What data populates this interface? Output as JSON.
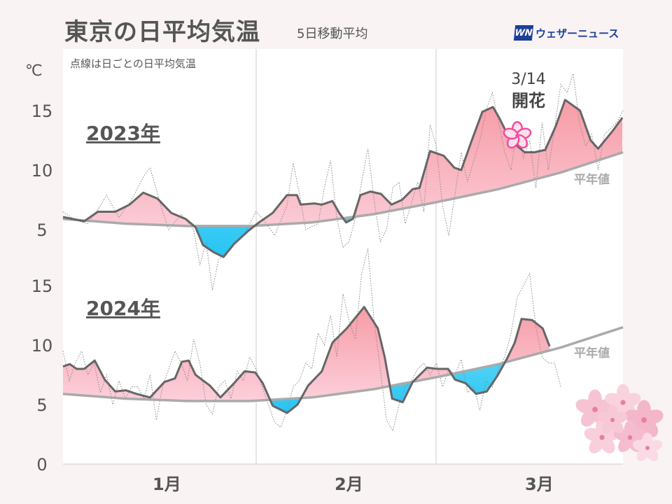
{
  "header": {
    "title": "東京の日平均気温",
    "subtitle": "5日移動平均",
    "logo_text": "ウェザーニュース",
    "logo_mark": "WN"
  },
  "note": "点線は日ごとの日平均気温",
  "colors": {
    "above": "#f7a8b4",
    "below": "#3fd0f5",
    "avg_line": "#666666",
    "normal_line": "#aaaaaa"
  },
  "chart_data": [
    {
      "type": "area",
      "title": "2023年",
      "ylabel": "℃",
      "yticks": [
        5,
        10,
        15
      ],
      "ylim": [
        0,
        17
      ],
      "xlabels": [
        "1月",
        "2月",
        "3月"
      ],
      "xlim_days": [
        0,
        90
      ],
      "annotation": {
        "date": "3/14",
        "label": "開花",
        "day": 72.5
      },
      "normal_label": "平年値",
      "normal": [
        [
          0,
          5.9
        ],
        [
          10,
          5.5
        ],
        [
          20,
          5.3
        ],
        [
          30,
          5.3
        ],
        [
          40,
          5.6
        ],
        [
          50,
          6.3
        ],
        [
          60,
          7.3
        ],
        [
          70,
          8.4
        ],
        [
          80,
          9.8
        ],
        [
          90,
          11.5
        ]
      ],
      "avg": [
        [
          0,
          6.06
        ],
        [
          3.4,
          5.7
        ],
        [
          5.6,
          6.5
        ],
        [
          8.4,
          6.5
        ],
        [
          10.7,
          7.1
        ],
        [
          12.9,
          8.1
        ],
        [
          15.2,
          7.6
        ],
        [
          17.4,
          6.4
        ],
        [
          19.7,
          5.9
        ],
        [
          21.3,
          5.2
        ],
        [
          22.5,
          3.7
        ],
        [
          24.2,
          3.1
        ],
        [
          25.8,
          2.7
        ],
        [
          27.5,
          3.8
        ],
        [
          29.8,
          4.9
        ],
        [
          31.5,
          5.6
        ],
        [
          33.7,
          6.4
        ],
        [
          36,
          7.9
        ],
        [
          37.6,
          7.9
        ],
        [
          38.2,
          7.1
        ],
        [
          40.4,
          7.2
        ],
        [
          41.6,
          7.1
        ],
        [
          43.3,
          7.4
        ],
        [
          44.4,
          6.4
        ],
        [
          45.5,
          5.6
        ],
        [
          46.6,
          5.9
        ],
        [
          47.8,
          7.9
        ],
        [
          49.4,
          8.2
        ],
        [
          51.1,
          8.0
        ],
        [
          52.8,
          7.1
        ],
        [
          54.5,
          7.5
        ],
        [
          56.2,
          8.4
        ],
        [
          57.3,
          8.5
        ],
        [
          59,
          11.6
        ],
        [
          61.2,
          11.2
        ],
        [
          62.9,
          10.2
        ],
        [
          64,
          10.0
        ],
        [
          65.7,
          12.5
        ],
        [
          67.4,
          14.9
        ],
        [
          69.1,
          15.3
        ],
        [
          70.2,
          14.3
        ],
        [
          71.9,
          12.5
        ],
        [
          74.2,
          11.5
        ],
        [
          75.8,
          11.5
        ],
        [
          77.5,
          11.7
        ],
        [
          79.2,
          13.7
        ],
        [
          80.7,
          15.9
        ],
        [
          83.1,
          15.0
        ],
        [
          84.8,
          12.5
        ],
        [
          86,
          11.8
        ],
        [
          88.2,
          13.2
        ],
        [
          89.9,
          14.4
        ]
      ],
      "daily": [
        [
          0,
          6.5
        ],
        [
          2,
          5.8
        ],
        [
          4,
          5.5
        ],
        [
          6,
          7.0
        ],
        [
          7,
          7.9
        ],
        [
          9,
          6.0
        ],
        [
          11,
          7.5
        ],
        [
          13,
          9.5
        ],
        [
          14,
          10.2
        ],
        [
          16,
          6.5
        ],
        [
          17,
          5.0
        ],
        [
          19,
          6.3
        ],
        [
          21,
          5.0
        ],
        [
          22,
          2.0
        ],
        [
          23,
          4.0
        ],
        [
          24,
          -0.1
        ],
        [
          25,
          2.5
        ],
        [
          27,
          3.5
        ],
        [
          29,
          4.5
        ],
        [
          31,
          6.5
        ],
        [
          32,
          6.0
        ],
        [
          34,
          4.5
        ],
        [
          36,
          7.0
        ],
        [
          37,
          10.6
        ],
        [
          38,
          8.0
        ],
        [
          39,
          5.0
        ],
        [
          41,
          5.5
        ],
        [
          42,
          8.5
        ],
        [
          43,
          10.8
        ],
        [
          44,
          6.0
        ],
        [
          45,
          3.5
        ],
        [
          46,
          4.0
        ],
        [
          47,
          6.0
        ],
        [
          48,
          9.0
        ],
        [
          49,
          11.8
        ],
        [
          50,
          7.5
        ],
        [
          51,
          4.0
        ],
        [
          52,
          5.0
        ],
        [
          53,
          8.5
        ],
        [
          54,
          9.0
        ],
        [
          55,
          5.5
        ],
        [
          57,
          9.0
        ],
        [
          58,
          6.5
        ],
        [
          59,
          13.8
        ],
        [
          60,
          12.0
        ],
        [
          61,
          7.0
        ],
        [
          62,
          4.5
        ],
        [
          63,
          8.0
        ],
        [
          64,
          11.5
        ],
        [
          65,
          9.0
        ],
        [
          67,
          12.5
        ],
        [
          68,
          15.0
        ],
        [
          69,
          16.5
        ],
        [
          70,
          14.0
        ],
        [
          71,
          11.5
        ],
        [
          72,
          10.0
        ],
        [
          73,
          13.5
        ],
        [
          74,
          11.0
        ],
        [
          75,
          12.5
        ],
        [
          76,
          8.5
        ],
        [
          77,
          14.0
        ],
        [
          78,
          10.0
        ],
        [
          79,
          13.5
        ],
        [
          80,
          17.2
        ],
        [
          81,
          16.5
        ],
        [
          82,
          18.1
        ],
        [
          83,
          14.0
        ],
        [
          84,
          12.0
        ],
        [
          85,
          13.0
        ],
        [
          86,
          10.0
        ],
        [
          87,
          13.0
        ],
        [
          89,
          14.0
        ],
        [
          90,
          15.0
        ]
      ]
    },
    {
      "type": "area",
      "title": "2024年",
      "ylabel": "℃",
      "yticks": [
        0,
        5,
        10,
        15
      ],
      "ylim": [
        0,
        15
      ],
      "xlabels": [
        "1月",
        "2月",
        "3月"
      ],
      "xlim_days": [
        0,
        90
      ],
      "normal_label": "平年値",
      "normal": [
        [
          0,
          5.9
        ],
        [
          10,
          5.5
        ],
        [
          20,
          5.3
        ],
        [
          30,
          5.3
        ],
        [
          40,
          5.6
        ],
        [
          50,
          6.3
        ],
        [
          60,
          7.3
        ],
        [
          70,
          8.4
        ],
        [
          80,
          9.8
        ],
        [
          90,
          11.5
        ]
      ],
      "avg": [
        [
          0,
          8.2
        ],
        [
          1.1,
          8.4
        ],
        [
          2.2,
          8.0
        ],
        [
          3.4,
          8.0
        ],
        [
          5.1,
          8.7
        ],
        [
          6.7,
          7.1
        ],
        [
          8.4,
          6.1
        ],
        [
          10.1,
          6.2
        ],
        [
          11.8,
          5.9
        ],
        [
          14,
          5.6
        ],
        [
          16.3,
          6.9
        ],
        [
          18,
          7.2
        ],
        [
          19.1,
          8.6
        ],
        [
          20.2,
          8.7
        ],
        [
          21.3,
          7.5
        ],
        [
          23.6,
          6.6
        ],
        [
          25.3,
          5.6
        ],
        [
          27.5,
          6.8
        ],
        [
          29.2,
          7.8
        ],
        [
          30.9,
          7.7
        ],
        [
          32.1,
          6.8
        ],
        [
          33.7,
          4.9
        ],
        [
          36,
          4.3
        ],
        [
          37.7,
          5.0
        ],
        [
          39.4,
          6.6
        ],
        [
          41.6,
          7.8
        ],
        [
          43.3,
          10.2
        ],
        [
          45.6,
          11.4
        ],
        [
          48.4,
          13.2
        ],
        [
          50.6,
          11.4
        ],
        [
          51.7,
          9.0
        ],
        [
          52.9,
          5.5
        ],
        [
          54.6,
          5.2
        ],
        [
          56.2,
          6.9
        ],
        [
          58.5,
          8.1
        ],
        [
          60.2,
          8.0
        ],
        [
          61.9,
          8.0
        ],
        [
          63,
          7.1
        ],
        [
          64.7,
          6.8
        ],
        [
          66.4,
          5.9
        ],
        [
          68.1,
          6.1
        ],
        [
          69.8,
          7.4
        ],
        [
          71.4,
          8.9
        ],
        [
          72.6,
          10.2
        ],
        [
          73.7,
          12.2
        ],
        [
          75.4,
          12.1
        ],
        [
          77.1,
          11.4
        ],
        [
          78.2,
          9.9
        ]
      ],
      "daily": [
        [
          0,
          9.5
        ],
        [
          1,
          7.0
        ],
        [
          2,
          8.5
        ],
        [
          3,
          9.5
        ],
        [
          4,
          7.5
        ],
        [
          5,
          8.5
        ],
        [
          6,
          6.0
        ],
        [
          7,
          7.5
        ],
        [
          8,
          5.0
        ],
        [
          9,
          7.0
        ],
        [
          10,
          5.5
        ],
        [
          11,
          6.5
        ],
        [
          12,
          6.5
        ],
        [
          13,
          5.5
        ],
        [
          14,
          7.5
        ],
        [
          15,
          3.7
        ],
        [
          16,
          6.5
        ],
        [
          17,
          8.0
        ],
        [
          18,
          9.5
        ],
        [
          19,
          8.5
        ],
        [
          20,
          7.0
        ],
        [
          21,
          10.5
        ],
        [
          22,
          8.5
        ],
        [
          23,
          5.0
        ],
        [
          24,
          4.2
        ],
        [
          25,
          6.5
        ],
        [
          26,
          7.0
        ],
        [
          27,
          5.5
        ],
        [
          28,
          7.8
        ],
        [
          29,
          7.0
        ],
        [
          30,
          9.0
        ],
        [
          31,
          8.0
        ],
        [
          32,
          6.5
        ],
        [
          33,
          5.0
        ],
        [
          34,
          3.5
        ],
        [
          35,
          3.1
        ],
        [
          36,
          4.5
        ],
        [
          37,
          6.5
        ],
        [
          38,
          7.0
        ],
        [
          39,
          8.5
        ],
        [
          40,
          8.0
        ],
        [
          41,
          11.0
        ],
        [
          42,
          10.0
        ],
        [
          43,
          12.5
        ],
        [
          44,
          9.0
        ],
        [
          45,
          14.3
        ],
        [
          46,
          12.0
        ],
        [
          47,
          10.5
        ],
        [
          48,
          16.0
        ],
        [
          49,
          18.1
        ],
        [
          50,
          12.0
        ],
        [
          51,
          8.0
        ],
        [
          52,
          3.7
        ],
        [
          53,
          2.8
        ],
        [
          54,
          5.0
        ],
        [
          55,
          6.5
        ],
        [
          56,
          7.0
        ],
        [
          57,
          8.0
        ],
        [
          58,
          8.5
        ],
        [
          59,
          7.5
        ],
        [
          60,
          8.5
        ],
        [
          61,
          6.5
        ],
        [
          62,
          8.0
        ],
        [
          63,
          7.5
        ],
        [
          64,
          8.8
        ],
        [
          65,
          6.0
        ],
        [
          66,
          6.5
        ],
        [
          67,
          4.5
        ],
        [
          68,
          7.0
        ],
        [
          69,
          6.5
        ],
        [
          70,
          8.0
        ],
        [
          71,
          9.0
        ],
        [
          72,
          11.0
        ],
        [
          73,
          14.0
        ],
        [
          74,
          15.0
        ],
        [
          75,
          16.0
        ],
        [
          76,
          11.5
        ],
        [
          77,
          9.0
        ],
        [
          78,
          8.5
        ],
        [
          79,
          8.5
        ],
        [
          80,
          6.5
        ]
      ]
    }
  ]
}
